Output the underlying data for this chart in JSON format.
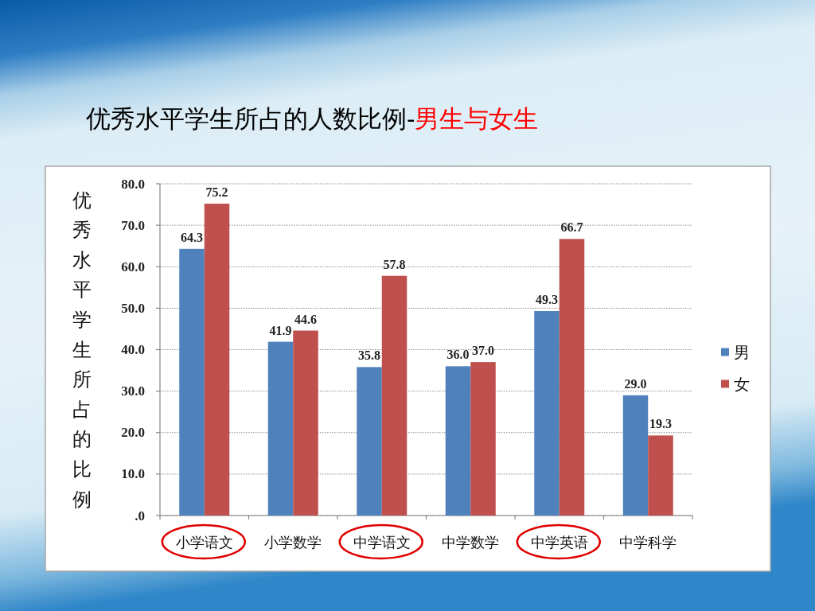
{
  "chart_data": {
    "type": "bar",
    "title": "优秀水平学生所占的人数比例-",
    "subtitle": "男生与女生",
    "ylabel": "优秀水平学生所占的比例",
    "categories": [
      "小学语文",
      "小学数学",
      "中学语文",
      "中学数学",
      "中学英语",
      "中学科学"
    ],
    "series": [
      {
        "name": "男",
        "color": "#4f81bd",
        "values": [
          64.3,
          41.9,
          35.8,
          36.0,
          49.3,
          29.0
        ],
        "value_labels": [
          "64.3",
          "41.9",
          "35.8",
          "36.0",
          "49.3",
          "29.0"
        ]
      },
      {
        "name": "女",
        "color": "#c0504d",
        "values": [
          75.2,
          44.6,
          57.8,
          37.0,
          66.7,
          19.3
        ],
        "value_labels": [
          "75.2",
          "44.6",
          "57.8",
          "37.0",
          "66.7",
          "19.3"
        ]
      }
    ],
    "ylim": [
      0,
      80
    ],
    "yticks": [
      {
        "value": 0,
        "label": ".0"
      },
      {
        "value": 10,
        "label": "10.0"
      },
      {
        "value": 20,
        "label": "20.0"
      },
      {
        "value": 30,
        "label": "30.0"
      },
      {
        "value": 40,
        "label": "40.0"
      },
      {
        "value": 50,
        "label": "50.0"
      },
      {
        "value": 60,
        "label": "60.0"
      },
      {
        "value": 70,
        "label": "70.0"
      },
      {
        "value": 80,
        "label": "80.0"
      }
    ],
    "grid": "y",
    "legend": "right"
  }
}
